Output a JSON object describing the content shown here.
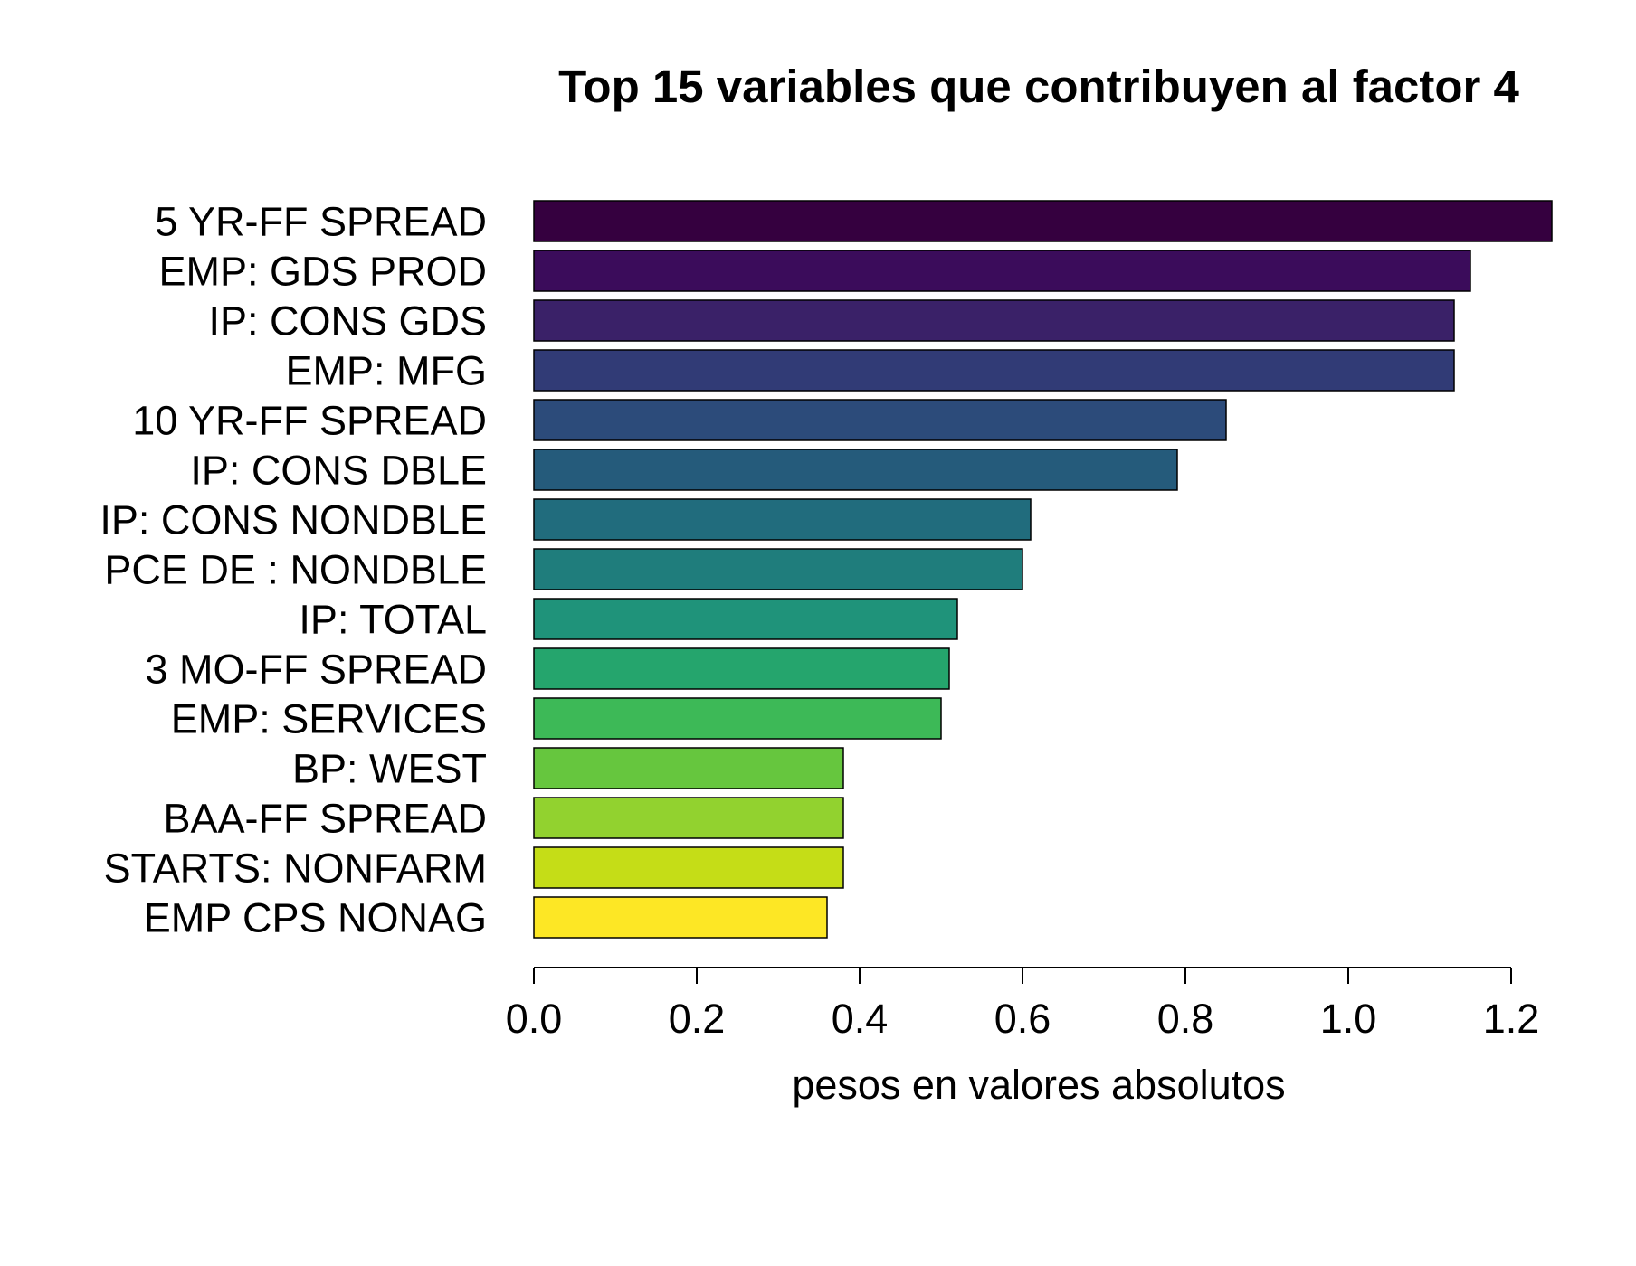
{
  "chart_data": {
    "type": "bar",
    "orientation": "horizontal",
    "title": "Top 15 variables que contribuyen al factor 4",
    "xlabel": "pesos en valores absolutos",
    "ylabel": "",
    "categories": [
      "5 YR-FF SPREAD",
      "EMP: GDS PROD",
      "IP: CONS GDS",
      "EMP: MFG",
      "10 YR-FF SPREAD",
      "IP: CONS DBLE",
      "IP: CONS NONDBLE",
      "PCE DE : NONDBLE",
      "IP: TOTAL",
      "3 MO-FF SPREAD",
      "EMP: SERVICES",
      "BP: WEST",
      "BAA-FF SPREAD",
      "STARTS: NONFARM",
      "EMP CPS NONAG"
    ],
    "values": [
      1.25,
      1.15,
      1.13,
      1.13,
      0.85,
      0.79,
      0.61,
      0.6,
      0.52,
      0.51,
      0.5,
      0.38,
      0.38,
      0.38,
      0.36
    ],
    "colors": [
      "#35003f",
      "#3b0c5b",
      "#3a2168",
      "#313b76",
      "#2c4b7a",
      "#255b7b",
      "#216c7d",
      "#1f7d7c",
      "#1f937a",
      "#25a56d",
      "#3db957",
      "#66c63e",
      "#92d22f",
      "#c5dd17",
      "#fde725"
    ],
    "xlim": [
      0,
      1.2
    ],
    "xticks": [
      "0.0",
      "0.2",
      "0.4",
      "0.6",
      "0.8",
      "1.0",
      "1.2"
    ],
    "grid": false,
    "legend": "none"
  }
}
